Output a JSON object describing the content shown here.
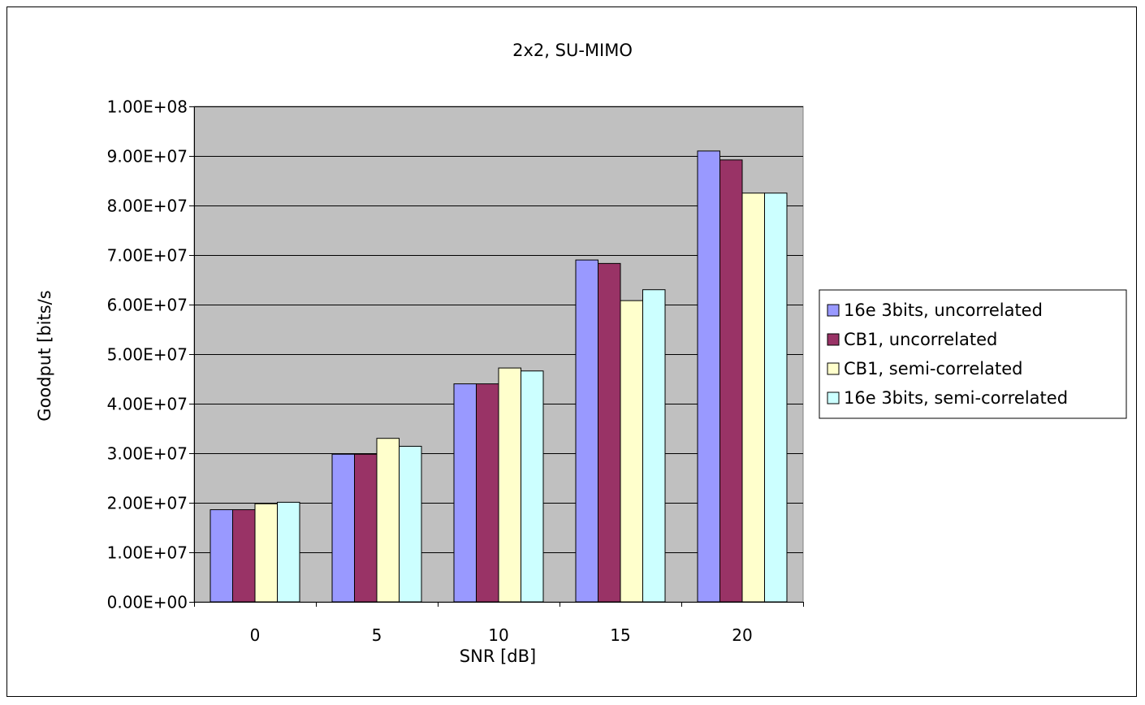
{
  "chart_data": {
    "type": "bar",
    "title": "2x2, SU-MIMO",
    "xlabel": "SNR [dB]",
    "ylabel": "Goodput [bits/s",
    "categories": [
      "0",
      "5",
      "10",
      "15",
      "20"
    ],
    "ylim": [
      0,
      100000000
    ],
    "y_ticks": [
      0,
      10000000,
      20000000,
      30000000,
      40000000,
      50000000,
      60000000,
      70000000,
      80000000,
      90000000,
      100000000
    ],
    "y_tick_labels": [
      "0.00E+00",
      "1.00E+07",
      "2.00E+07",
      "3.00E+07",
      "4.00E+07",
      "5.00E+07",
      "6.00E+07",
      "7.00E+07",
      "8.00E+07",
      "9.00E+07",
      "1.00E+08"
    ],
    "grid": true,
    "legend_position": "right",
    "plot_background": "#c0c0c0",
    "series": [
      {
        "name": "16e 3bits, uncorrelated",
        "color": "#9999ff",
        "values": [
          18600000,
          29800000,
          44000000,
          69000000,
          91000000
        ]
      },
      {
        "name": "CB1, uncorrelated",
        "color": "#993366",
        "values": [
          18600000,
          29800000,
          44000000,
          68300000,
          89200000
        ]
      },
      {
        "name": "CB1, semi-correlated",
        "color": "#ffffcc",
        "values": [
          19800000,
          33000000,
          47200000,
          60800000,
          82500000
        ]
      },
      {
        "name": "16e 3bits, semi-correlated",
        "color": "#ccffff",
        "values": [
          20100000,
          31400000,
          46600000,
          63000000,
          82500000
        ]
      }
    ]
  }
}
